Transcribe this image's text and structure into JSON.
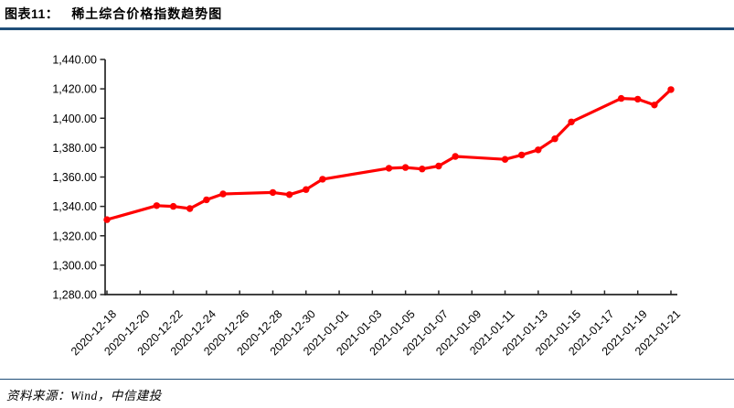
{
  "header": {
    "figure_label": "图表11：",
    "figure_title": "稀土综合价格指数趋势图"
  },
  "footer": {
    "source": "资料来源：Wind，中信建投"
  },
  "colors": {
    "accent_rule": "#1F4E79",
    "series_line": "#FF0000",
    "axis": "#262626",
    "tick_text": "#000000"
  },
  "chart_data": {
    "type": "line",
    "title": "稀土综合价格指数趋势图",
    "x": [
      "2020-12-18",
      "2020-12-21",
      "2020-12-22",
      "2020-12-23",
      "2020-12-24",
      "2020-12-25",
      "2020-12-28",
      "2020-12-29",
      "2020-12-30",
      "2020-12-31",
      "2021-01-04",
      "2021-01-05",
      "2021-01-06",
      "2021-01-07",
      "2021-01-08",
      "2021-01-11",
      "2021-01-12",
      "2021-01-13",
      "2021-01-14",
      "2021-01-15",
      "2021-01-18",
      "2021-01-19",
      "2021-01-20",
      "2021-01-21"
    ],
    "values": [
      1331,
      1340.5,
      1340,
      1338.5,
      1344.5,
      1348.5,
      1349.5,
      1348,
      1351.5,
      1358.5,
      1366,
      1366.5,
      1365.5,
      1367.5,
      1374,
      1372,
      1375,
      1378.5,
      1386,
      1397.5,
      1413.5,
      1413,
      1409,
      1419.5
    ],
    "xticks": [
      "2020-12-18",
      "2020-12-20",
      "2020-12-22",
      "2020-12-24",
      "2020-12-26",
      "2020-12-28",
      "2020-12-30",
      "2021-01-01",
      "2021-01-03",
      "2021-01-05",
      "2021-01-07",
      "2021-01-09",
      "2021-01-11",
      "2021-01-13",
      "2021-01-15",
      "2021-01-17",
      "2021-01-19",
      "2021-01-21"
    ],
    "yticks": [
      1280,
      1300,
      1320,
      1340,
      1360,
      1380,
      1400,
      1420,
      1440
    ],
    "ytick_format": "#,##0.00",
    "ylim": [
      1280,
      1440
    ],
    "xlim": [
      "2020-12-18",
      "2021-01-21"
    ],
    "xtick_rotation": 45,
    "line_color": "#FF0000",
    "marker": "circle",
    "grid": false,
    "legend_position": "none"
  }
}
